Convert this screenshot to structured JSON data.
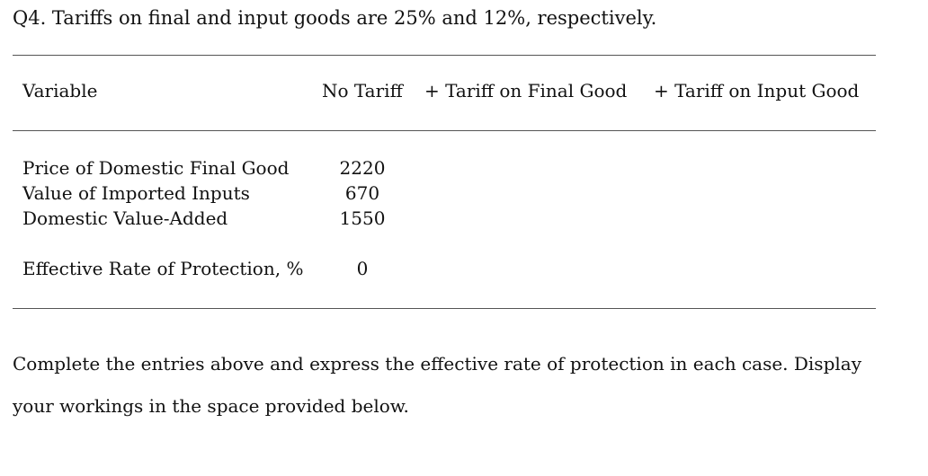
{
  "question": "Q4. Tariffs on final and input goods are 25% and 12%, respectively.",
  "table": {
    "headers": {
      "variable": "Variable",
      "no_tariff": "No Tariff",
      "tariff_final": "+ Tariff on Final Good",
      "tariff_input": "+ Tariff on Input Good"
    },
    "rows": [
      {
        "label": "Price of Domestic Final Good",
        "no_tariff": "2220"
      },
      {
        "label": "Value of Imported Inputs",
        "no_tariff": "670"
      },
      {
        "label": "Domestic Value-Added",
        "no_tariff": "1550"
      },
      {
        "label": "Effective Rate of Protection, %",
        "no_tariff": "0"
      }
    ]
  },
  "instructions": {
    "line1": "Complete the entries above and express the effective rate of protection in each case. Display",
    "line2": "your workings in the space provided below."
  }
}
